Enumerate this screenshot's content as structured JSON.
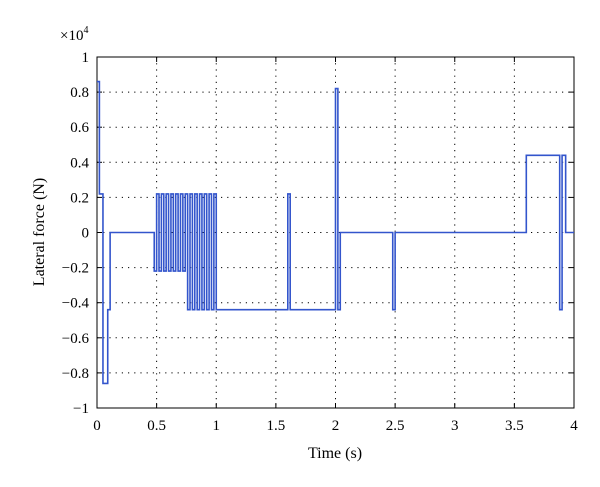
{
  "chart_data": {
    "type": "line",
    "title": "",
    "xlabel": "Time (s)",
    "ylabel": "Lateral force (N)",
    "y_multiplier_base": "×10",
    "y_multiplier_exp": "4",
    "xlim": [
      0,
      4
    ],
    "ylim": [
      -1,
      1
    ],
    "grid": true,
    "grid_style": "dotted",
    "line_color": "#3355cc",
    "xticks": [
      "0",
      "0.5",
      "1",
      "1.5",
      "2",
      "2.5",
      "3",
      "3.5",
      "4"
    ],
    "yticks": [
      "1",
      "0.8",
      "0.6",
      "0.4",
      "0.2",
      "0",
      "−0.2",
      "−0.4",
      "−0.6",
      "−0.8",
      "−1"
    ],
    "x": [
      0,
      0.02,
      0.02,
      0.05,
      0.05,
      0.09,
      0.09,
      0.11,
      0.11,
      0.48,
      0.48,
      0.5,
      0.5,
      0.52,
      0.52,
      0.54,
      0.54,
      0.56,
      0.56,
      0.58,
      0.58,
      0.6,
      0.6,
      0.62,
      0.62,
      0.64,
      0.64,
      0.66,
      0.66,
      0.68,
      0.68,
      0.7,
      0.7,
      0.72,
      0.72,
      0.74,
      0.74,
      0.76,
      0.76,
      0.78,
      0.78,
      0.8,
      0.8,
      0.82,
      0.82,
      0.84,
      0.84,
      0.86,
      0.86,
      0.88,
      0.88,
      0.9,
      0.9,
      0.92,
      0.92,
      0.94,
      0.94,
      0.96,
      0.96,
      0.98,
      0.98,
      1.0,
      1.0,
      1.02,
      1.02,
      1.6,
      1.6,
      1.62,
      1.62,
      2.0,
      2.0,
      2.02,
      2.02,
      2.04,
      2.04,
      2.48,
      2.48,
      2.5,
      2.5,
      3.6,
      3.6,
      3.88,
      3.88,
      3.9,
      3.9,
      3.93,
      3.93,
      3.95,
      3.95,
      4.0
    ],
    "y": [
      0.86,
      0.86,
      0.22,
      0.22,
      -0.86,
      -0.86,
      -0.44,
      -0.44,
      0,
      0,
      -0.22,
      -0.22,
      0.22,
      0.22,
      -0.22,
      -0.22,
      0.22,
      0.22,
      -0.22,
      -0.22,
      0.22,
      0.22,
      -0.22,
      -0.22,
      0.22,
      0.22,
      -0.22,
      -0.22,
      0.22,
      0.22,
      -0.22,
      -0.22,
      0.22,
      0.22,
      -0.22,
      -0.22,
      0.22,
      0.22,
      -0.44,
      -0.44,
      0.22,
      0.22,
      -0.44,
      -0.44,
      0.22,
      0.22,
      -0.44,
      -0.44,
      0.22,
      0.22,
      -0.44,
      -0.44,
      0.22,
      0.22,
      -0.44,
      -0.44,
      0.22,
      0.22,
      -0.44,
      -0.44,
      0.22,
      0.22,
      -0.44,
      -0.44,
      -0.44,
      -0.44,
      0.22,
      0.22,
      -0.44,
      -0.44,
      0.82,
      0.82,
      -0.44,
      -0.44,
      0,
      0,
      -0.44,
      -0.44,
      0,
      0,
      0.44,
      0.44,
      -0.44,
      -0.44,
      0.44,
      0.44,
      0,
      0,
      0,
      0
    ]
  }
}
